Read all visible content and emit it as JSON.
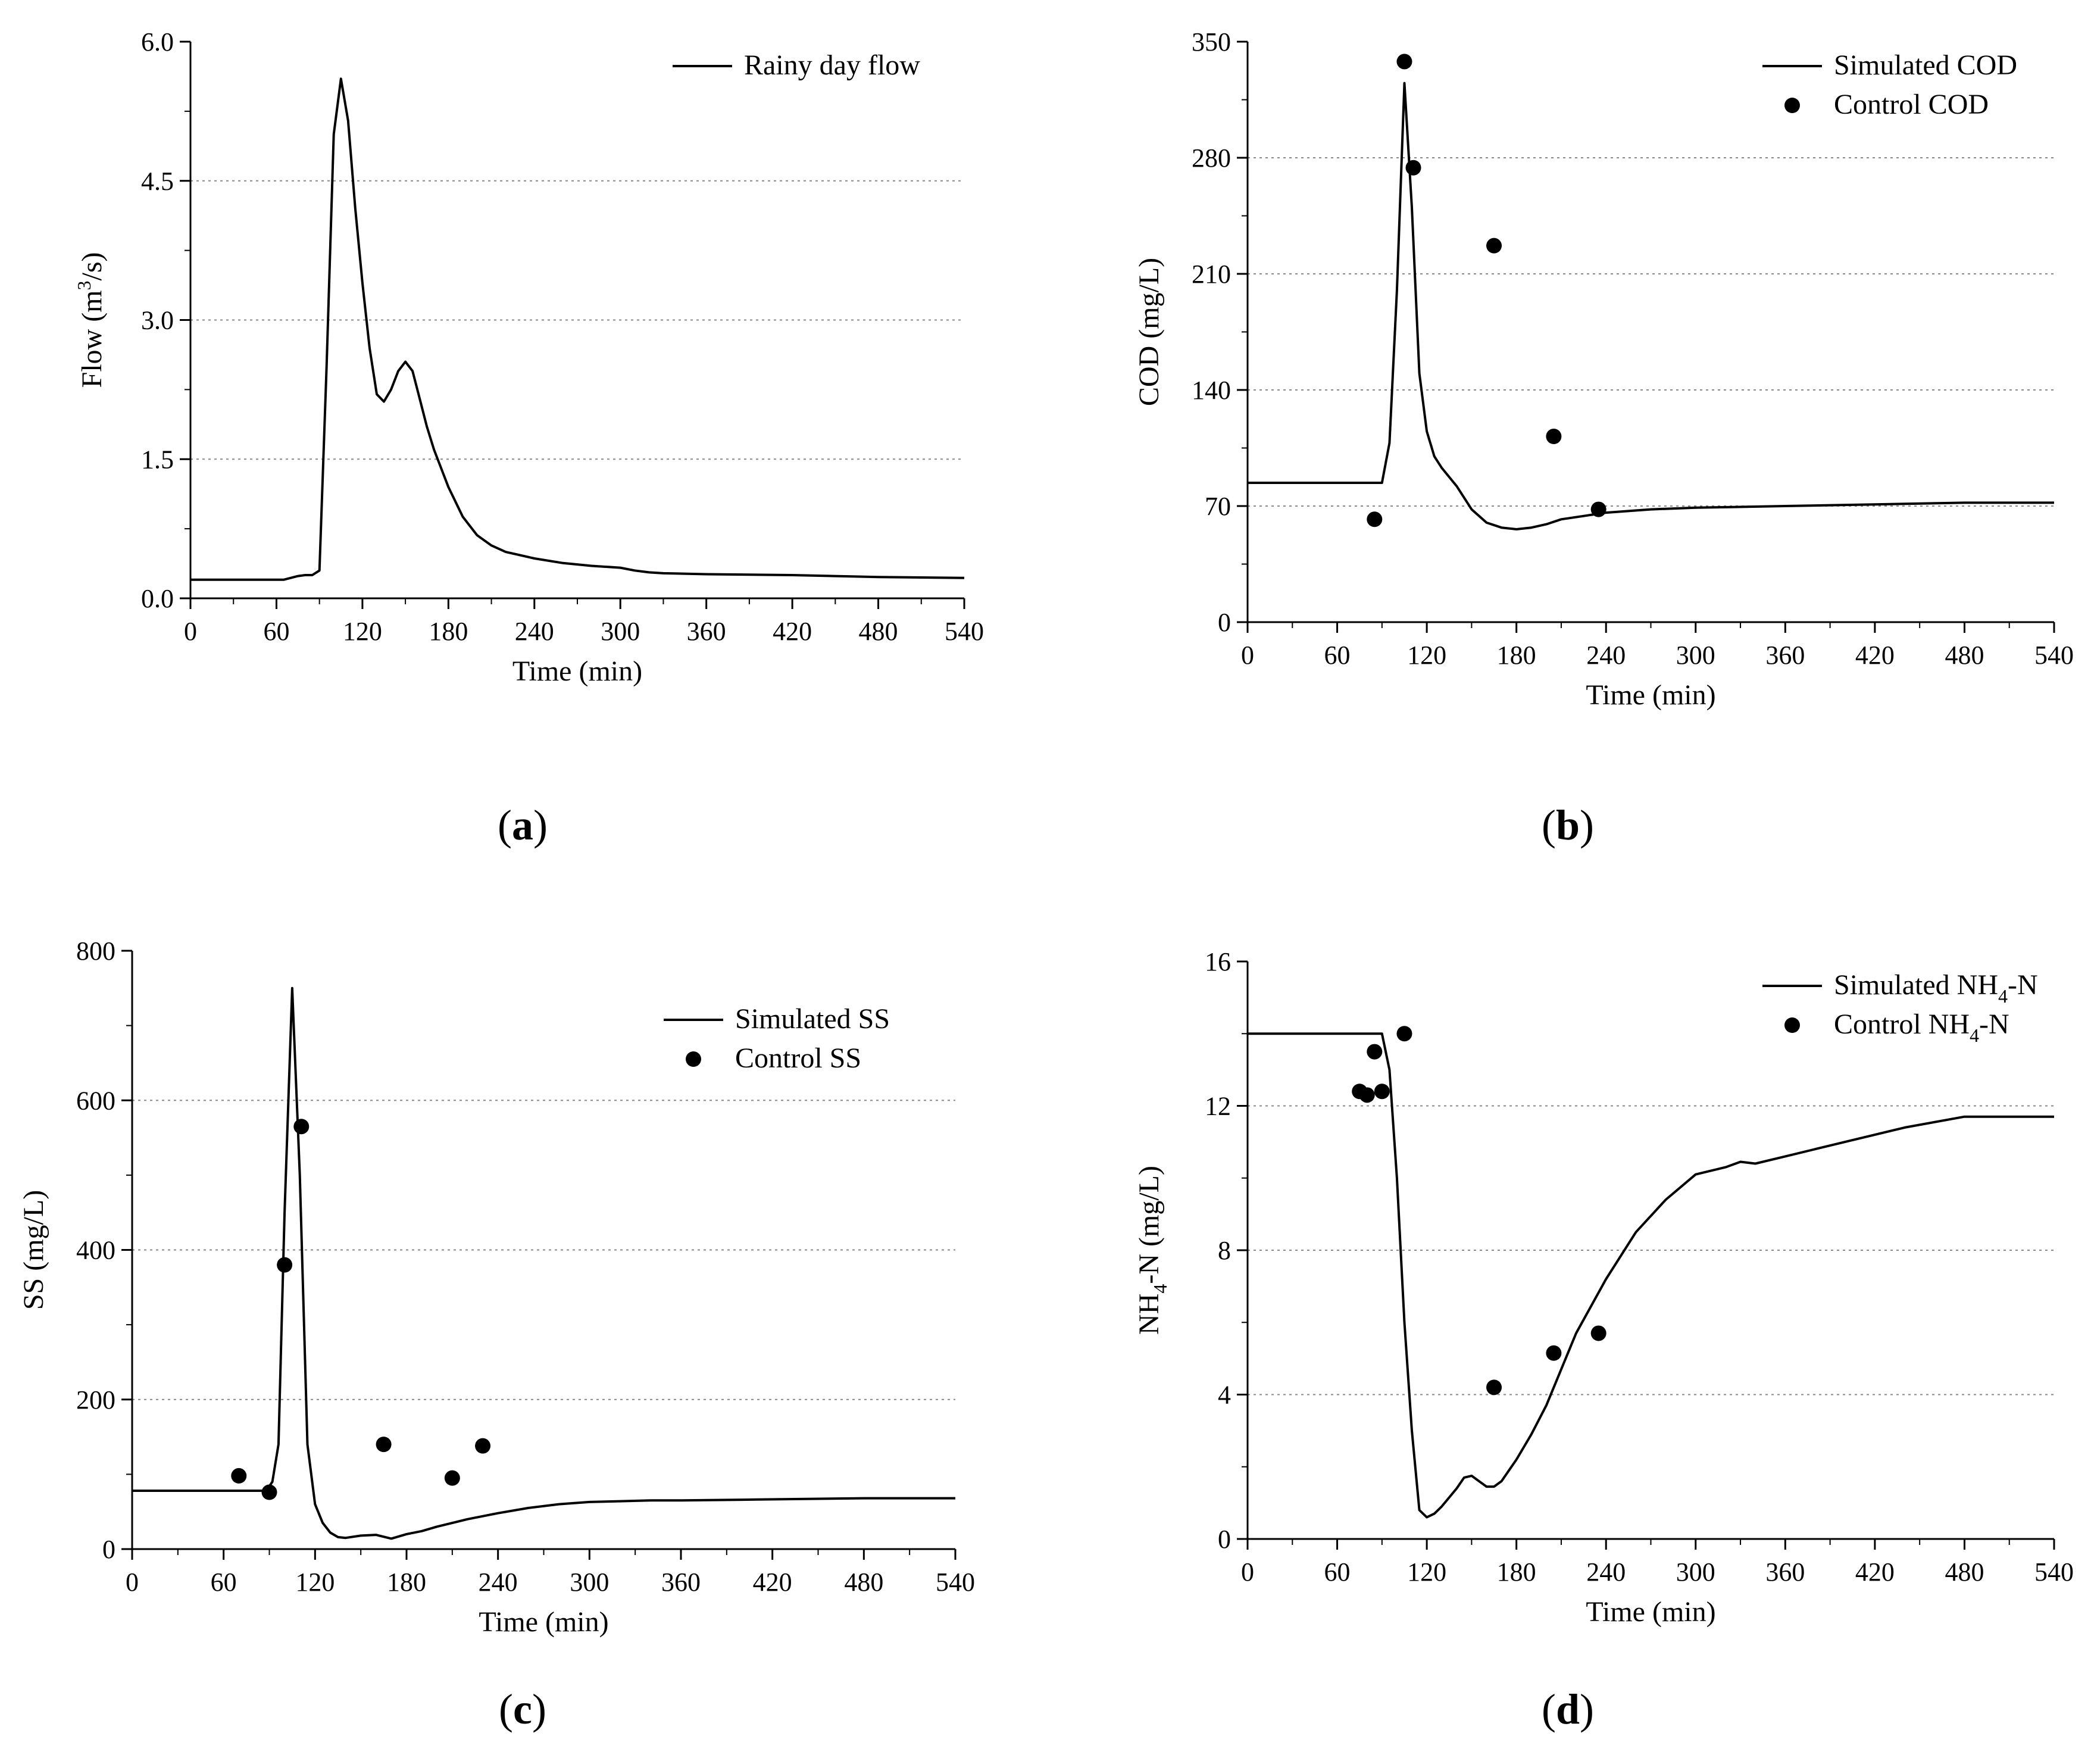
{
  "figure": {
    "panels": [
      {
        "id": "a",
        "caption_letter": "a",
        "chart_data": {
          "type": "line",
          "title": "",
          "xlabel": "Time (min)",
          "ylabel_main": "Flow (m",
          "ylabel_sup": "3",
          "ylabel_tail": "/s)",
          "xlim": [
            0,
            540
          ],
          "ylim": [
            0,
            6.0
          ],
          "xticks": [
            0,
            60,
            120,
            180,
            240,
            300,
            360,
            420,
            480,
            540
          ],
          "yticks": [
            0.0,
            1.5,
            3.0,
            4.5,
            6.0
          ],
          "ytick_labels": [
            "0.0",
            "1.5",
            "3.0",
            "4.5",
            "6.0"
          ],
          "grid_y": [
            1.5,
            3.0,
            4.5
          ],
          "legend_position": "top-right",
          "series": [
            {
              "name": "Rainy day flow",
              "style": "line",
              "x": [
                0,
                60,
                65,
                75,
                80,
                85,
                90,
                95,
                100,
                105,
                110,
                115,
                120,
                125,
                130,
                135,
                140,
                145,
                150,
                155,
                160,
                165,
                170,
                175,
                180,
                190,
                200,
                210,
                220,
                240,
                260,
                280,
                300,
                310,
                320,
                330,
                360,
                420,
                480,
                540
              ],
              "y": [
                0.2,
                0.2,
                0.2,
                0.24,
                0.25,
                0.25,
                0.3,
                2.5,
                5.0,
                5.6,
                5.15,
                4.2,
                3.4,
                2.7,
                2.2,
                2.12,
                2.25,
                2.45,
                2.55,
                2.45,
                2.15,
                1.85,
                1.6,
                1.4,
                1.2,
                0.88,
                0.68,
                0.57,
                0.5,
                0.43,
                0.38,
                0.35,
                0.33,
                0.3,
                0.28,
                0.27,
                0.26,
                0.25,
                0.23,
                0.22
              ]
            }
          ]
        }
      },
      {
        "id": "b",
        "caption_letter": "b",
        "chart_data": {
          "type": "line",
          "title": "",
          "xlabel": "Time (min)",
          "ylabel": "COD (mg/L)",
          "xlim": [
            0,
            540
          ],
          "ylim": [
            0,
            350
          ],
          "xticks": [
            0,
            60,
            120,
            180,
            240,
            300,
            360,
            420,
            480,
            540
          ],
          "yticks": [
            0,
            70,
            140,
            210,
            280,
            350
          ],
          "ytick_labels": [
            "0",
            "70",
            "140",
            "210",
            "280",
            "350"
          ],
          "grid_y": [
            70,
            140,
            210,
            280
          ],
          "legend_position": "top-right",
          "series": [
            {
              "name": "Simulated COD",
              "style": "line",
              "x": [
                0,
                90,
                95,
                100,
                105,
                110,
                115,
                120,
                125,
                130,
                140,
                150,
                160,
                170,
                180,
                190,
                200,
                210,
                240,
                270,
                300,
                360,
                420,
                480,
                540
              ],
              "y": [
                84,
                84,
                108,
                200,
                325,
                250,
                150,
                115,
                100,
                93,
                82,
                68,
                60,
                57,
                56,
                57,
                59,
                62,
                66,
                68,
                69,
                70,
                71,
                72,
                72
              ]
            },
            {
              "name": "Control COD",
              "style": "points",
              "x": [
                85,
                105,
                111,
                165,
                205,
                235
              ],
              "y": [
                62,
                338,
                274,
                227,
                112,
                68
              ]
            }
          ]
        }
      },
      {
        "id": "c",
        "caption_letter": "c",
        "chart_data": {
          "type": "line",
          "title": "",
          "xlabel": "Time (min)",
          "ylabel": "SS (mg/L)",
          "xlim": [
            0,
            540
          ],
          "ylim": [
            0,
            800
          ],
          "xticks": [
            0,
            60,
            120,
            180,
            240,
            300,
            360,
            420,
            480,
            540
          ],
          "yticks": [
            0,
            200,
            400,
            600,
            800
          ],
          "ytick_labels": [
            "0",
            "200",
            "400",
            "600",
            "800"
          ],
          "grid_y": [
            200,
            400,
            600
          ],
          "legend_position": "top-right",
          "series": [
            {
              "name": "Simulated SS",
              "style": "line",
              "x": [
                0,
                88,
                92,
                96,
                100,
                105,
                110,
                115,
                120,
                125,
                130,
                135,
                140,
                150,
                160,
                170,
                180,
                190,
                200,
                220,
                240,
                260,
                280,
                300,
                320,
                340,
                360,
                400,
                480,
                540
              ],
              "y": [
                78,
                78,
                90,
                140,
                450,
                750,
                500,
                140,
                60,
                35,
                22,
                16,
                15,
                18,
                19,
                14,
                20,
                24,
                30,
                40,
                48,
                55,
                60,
                63,
                64,
                65,
                65,
                66,
                68,
                68
              ]
            },
            {
              "name": "Control SS",
              "style": "points",
              "x": [
                70,
                90,
                100,
                111,
                165,
                210,
                230
              ],
              "y": [
                98,
                76,
                380,
                565,
                140,
                95,
                138
              ]
            }
          ]
        }
      },
      {
        "id": "d",
        "caption_letter": "d",
        "chart_data": {
          "type": "line",
          "title": "",
          "xlabel": "Time (min)",
          "ylabel_main": "NH",
          "ylabel_sub": "4",
          "ylabel_tail": "-N (mg/L)",
          "xlim": [
            0,
            540
          ],
          "ylim": [
            0,
            16
          ],
          "xticks": [
            0,
            60,
            120,
            180,
            240,
            300,
            360,
            420,
            480,
            540
          ],
          "yticks": [
            0,
            4,
            8,
            12,
            16
          ],
          "ytick_labels": [
            "0",
            "4",
            "8",
            "12",
            "16"
          ],
          "grid_y": [
            4,
            8,
            12
          ],
          "legend_position": "top-right",
          "series": [
            {
              "name_main": "Simulated NH",
              "name_sub": "4",
              "name_tail": "-N",
              "style": "line",
              "x": [
                0,
                90,
                95,
                100,
                105,
                110,
                115,
                120,
                125,
                130,
                140,
                145,
                150,
                155,
                160,
                165,
                170,
                180,
                190,
                200,
                210,
                220,
                240,
                260,
                280,
                300,
                320,
                330,
                340,
                360,
                400,
                440,
                480,
                540
              ],
              "y": [
                14.0,
                14.0,
                13.0,
                10.0,
                6.0,
                3.0,
                0.8,
                0.6,
                0.7,
                0.9,
                1.4,
                1.7,
                1.75,
                1.6,
                1.45,
                1.45,
                1.6,
                2.2,
                2.9,
                3.7,
                4.7,
                5.7,
                7.2,
                8.5,
                9.4,
                10.1,
                10.3,
                10.45,
                10.4,
                10.6,
                11.0,
                11.4,
                11.7,
                11.7
              ]
            },
            {
              "name_main": "Control NH",
              "name_sub": "4",
              "name_tail": "-N",
              "style": "points",
              "x": [
                75,
                80,
                85,
                90,
                105,
                165,
                205,
                235
              ],
              "y": [
                12.4,
                12.3,
                13.5,
                12.4,
                14.0,
                4.2,
                5.15,
                5.7
              ]
            }
          ]
        }
      }
    ]
  }
}
